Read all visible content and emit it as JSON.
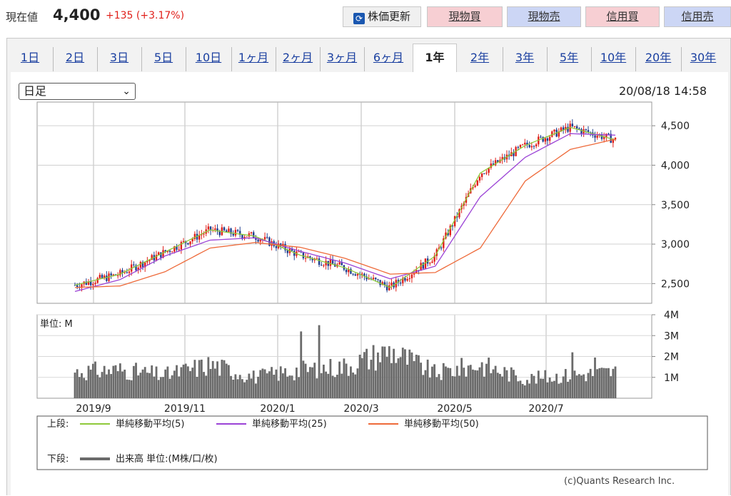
{
  "quote": {
    "label": "現在値",
    "price": "4,400",
    "change": "+135 (+3.17%)"
  },
  "buttons": {
    "refresh": "株価更新",
    "refresh_icon": "refresh-icon",
    "spot_buy": "現物買",
    "spot_sell": "現物売",
    "margin_buy": "信用買",
    "margin_sell": "信用売"
  },
  "tabs": [
    "1日",
    "2日",
    "3日",
    "5日",
    "10日",
    "1ヶ月",
    "2ヶ月",
    "3ヶ月",
    "6ヶ月",
    "1年",
    "2年",
    "3年",
    "5年",
    "10年",
    "20年",
    "30年"
  ],
  "active_tab": "1年",
  "period_select": {
    "value": "日足"
  },
  "timestamp": "20/08/18 14:58",
  "copyright": "(c)Quants Research Inc.",
  "colors": {
    "up": "#e0201a",
    "down": "#1f3e8f",
    "ma5": "#8fc93a",
    "ma25": "#9b43d6",
    "ma50": "#ee6a3a",
    "volume": "#6a6a6a"
  },
  "chart_data": [
    {
      "type": "line",
      "y_ticks": [
        2500,
        3000,
        3500,
        4000,
        4500
      ],
      "y_tick_labels": [
        "2,500",
        "3,000",
        "3,500",
        "4,000",
        "4,500"
      ],
      "x_tick_labels": [
        "2019/9",
        "2019/11",
        "2020/1",
        "2020/3",
        "2020/5",
        "2020/7"
      ],
      "ylim": [
        2250,
        4800
      ],
      "x": [
        "2019/8",
        "2019/9",
        "2019/10",
        "2019/11",
        "2019/12",
        "2020/1",
        "2020/2",
        "2020/3",
        "2020/4",
        "2020/5",
        "2020/6",
        "2020/7",
        "2020/8"
      ],
      "series": [
        {
          "name": "単純移動平均(5)",
          "values": [
            2480,
            2620,
            2900,
            3180,
            3100,
            2860,
            2700,
            2450,
            2850,
            3900,
            4250,
            4480,
            4320
          ]
        },
        {
          "name": "単純移動平均(25)",
          "values": [
            2400,
            2550,
            2850,
            3050,
            3080,
            2910,
            2760,
            2560,
            2720,
            3600,
            4100,
            4400,
            4380
          ]
        },
        {
          "name": "単純移動平均(50)",
          "values": [
            2450,
            2470,
            2650,
            2950,
            3020,
            2960,
            2820,
            2620,
            2640,
            2950,
            3800,
            4200,
            4330
          ]
        }
      ],
      "legend": {
        "upper_label": "上段:",
        "placement": "bottom"
      }
    },
    {
      "type": "bar",
      "unit_label": "単位: M",
      "y_tick_labels": [
        "1M",
        "2M",
        "3M",
        "4M"
      ],
      "ylim": [
        0,
        4
      ],
      "x": [
        "2019/8",
        "2019/9",
        "2019/10",
        "2019/11",
        "2019/12",
        "2020/1",
        "2020/2",
        "2020/3",
        "2020/4",
        "2020/5",
        "2020/6",
        "2020/7",
        "2020/8"
      ],
      "values": [
        1.5,
        1.6,
        1.3,
        1.9,
        1.2,
        1.6,
        1.8,
        2.7,
        1.4,
        1.9,
        1.1,
        1.3,
        1.5
      ],
      "legend": {
        "lower_label": "下段:",
        "name": "出来高 単位:(M株/口/枚)"
      }
    }
  ]
}
